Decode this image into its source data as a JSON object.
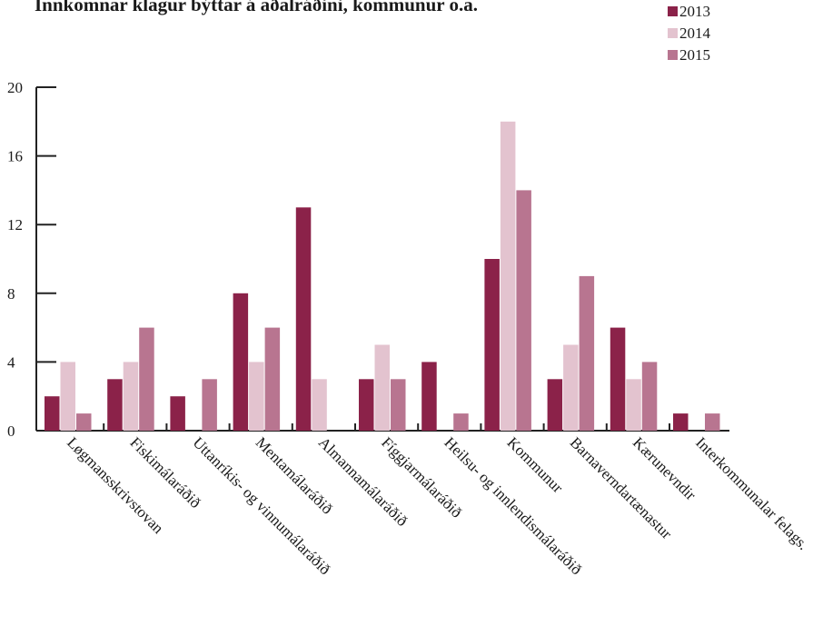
{
  "chart_data": {
    "type": "bar",
    "title": "Innkomnar klagur býttar á aðalráðini, kommunur o.a.",
    "xlabel": "",
    "ylabel": "",
    "ylim": [
      0,
      20
    ],
    "yticks": [
      0,
      4,
      8,
      12,
      16,
      20
    ],
    "grid": false,
    "legend_position": "top-right",
    "categories": [
      "Løgmansskrivstovan",
      "Fiskimálaráðið",
      "Uttanríkis- og vinnumálaráðið",
      "Mentamálaráðið",
      "Almannamálaráðið",
      "Fíggjarmálaráðið",
      "Heilsu- og innlendismálaráðið",
      "Kommunur",
      "Barnaverndartænastur",
      "Kærunevndir",
      "Interkommunalar felags."
    ],
    "series": [
      {
        "name": "2013",
        "color": "#8b2249",
        "values": [
          2,
          3,
          2,
          8,
          13,
          3,
          4,
          10,
          3,
          6,
          1
        ]
      },
      {
        "name": "2014",
        "color": "#e3c3cf",
        "values": [
          4,
          4,
          0,
          4,
          3,
          5,
          0,
          18,
          5,
          3,
          0
        ]
      },
      {
        "name": "2015",
        "color": "#b87590",
        "values": [
          1,
          6,
          3,
          6,
          0,
          3,
          1,
          14,
          9,
          4,
          1
        ]
      }
    ]
  }
}
